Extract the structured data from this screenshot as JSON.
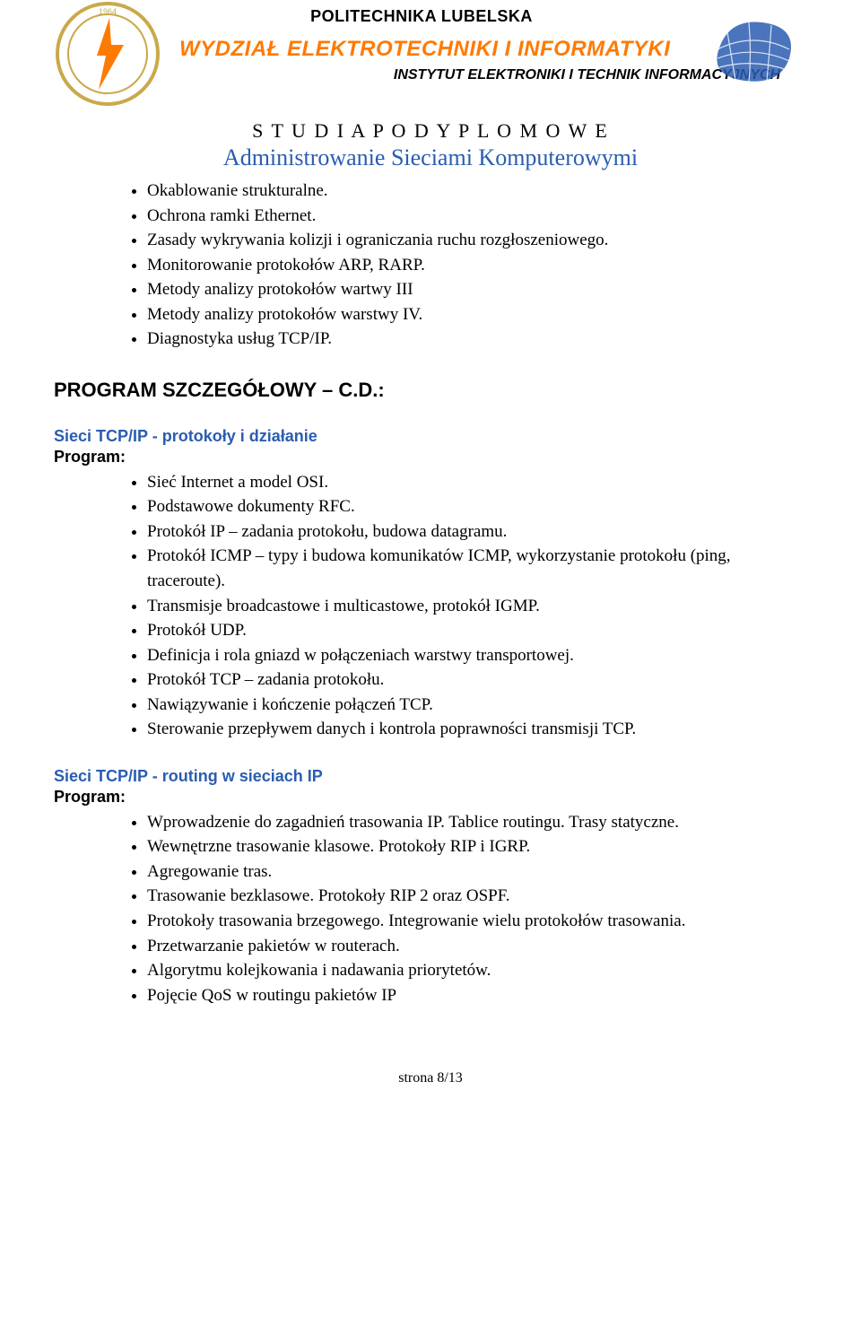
{
  "header": {
    "university": "POLITECHNIKA LUBELSKA",
    "faculty": "WYDZIAŁ ELEKTROTECHNIKI I INFORMATYKI",
    "institute": "INSTYTUT ELEKTRONIKI I TECHNIK INFORMACYJNYCH"
  },
  "title": {
    "line1": "S T U D I A   P O D Y P L O M O W E",
    "line2": "Administrowanie Sieciami Komputerowymi"
  },
  "intro_items": [
    "Okablowanie strukturalne.",
    "Ochrona ramki Ethernet.",
    "Zasady wykrywania kolizji i ograniczania ruchu rozgłoszeniowego.",
    "Monitorowanie protokołów ARP, RARP.",
    "Metody analizy protokołów wartwy III",
    "Metody analizy protokołów warstwy IV.",
    "Diagnostyka usług TCP/IP."
  ],
  "section_title": "PROGRAM SZCZEGÓŁOWY – C.D.:",
  "program_label": "Program:",
  "sections": [
    {
      "heading": "Sieci TCP/IP  - protokoły i działanie",
      "items": [
        "Sieć Internet a model OSI.",
        "Podstawowe dokumenty RFC.",
        "Protokół IP – zadania protokołu, budowa datagramu.",
        "Protokół ICMP – typy i budowa komunikatów ICMP, wykorzystanie protokołu (ping, traceroute).",
        "Transmisje broadcastowe i multicastowe, protokół IGMP.",
        "Protokół UDP.",
        "Definicja i rola gniazd w połączeniach warstwy transportowej.",
        "Protokół TCP – zadania protokołu.",
        "Nawiązywanie i kończenie połączeń TCP.",
        "Sterowanie przepływem danych i kontrola poprawności transmisji TCP."
      ]
    },
    {
      "heading": "Sieci TCP/IP  - routing w sieciach IP",
      "items": [
        "Wprowadzenie do zagadnień trasowania IP. Tablice routingu. Trasy statyczne.",
        "Wewnętrzne trasowanie klasowe. Protokoły RIP i IGRP.",
        "Agregowanie tras.",
        "Trasowanie bezklasowe. Protokoły RIP 2 oraz OSPF.",
        "Protokoły trasowania brzegowego. Integrowanie wielu protokołów trasowania.",
        "Przetwarzanie pakietów w routerach.",
        "Algorytmu kolejkowania i nadawania priorytetów.",
        "Pojęcie QoS w routingu pakietów IP"
      ]
    }
  ],
  "footer": "strona 8/13",
  "colors": {
    "orange": "#ff7a00",
    "blue": "#2a5db0",
    "gold": "#c9a94a",
    "text": "#000000",
    "background": "#ffffff"
  }
}
